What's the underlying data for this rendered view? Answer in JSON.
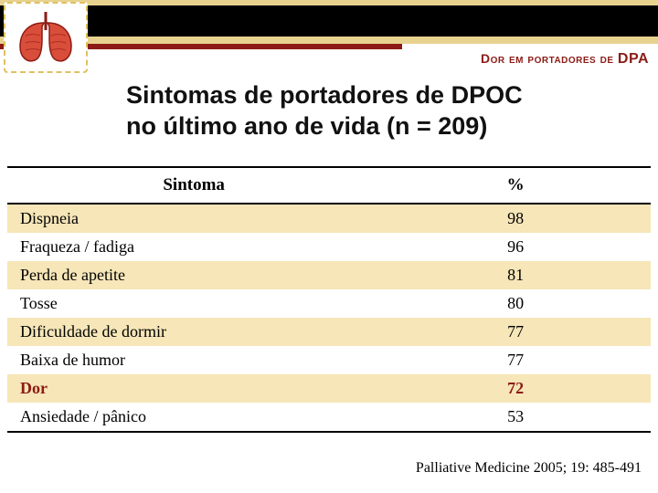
{
  "header": {
    "small_caps": "Dor em portadores de",
    "emph": "DPA",
    "color": "#8c1b15"
  },
  "title": {
    "line1": "Sintomas de portadores de DPOC",
    "line2": "no último ano de vida (n = 209)"
  },
  "table": {
    "columns": [
      "Sintoma",
      "%"
    ],
    "rows": [
      {
        "symptom": "Dispneia",
        "pct": "98",
        "band": "odd",
        "highlight": false
      },
      {
        "symptom": "Fraqueza / fadiga",
        "pct": "96",
        "band": "even",
        "highlight": false
      },
      {
        "symptom": "Perda de apetite",
        "pct": "81",
        "band": "odd",
        "highlight": false
      },
      {
        "symptom": "Tosse",
        "pct": "80",
        "band": "even",
        "highlight": false
      },
      {
        "symptom": "Dificuldade de dormir",
        "pct": "77",
        "band": "odd",
        "highlight": false
      },
      {
        "symptom": "Baixa de humor",
        "pct": "77",
        "band": "even",
        "highlight": false
      },
      {
        "symptom": "Dor",
        "pct": "72",
        "band": "odd",
        "highlight": true
      },
      {
        "symptom": "Ansiedade / pânico",
        "pct": "53",
        "band": "even",
        "highlight": false
      }
    ],
    "header_fontsize": 19,
    "cell_fontsize": 18,
    "odd_color": "#f6e6b8",
    "even_color": "#ffffff",
    "highlight_color": "#8c1b15"
  },
  "lung_icon": {
    "left_fill": "#d94e3a",
    "right_fill": "#d94e3a",
    "stroke": "#8c1b15",
    "bg": "#ffffff"
  },
  "citation": "Palliative Medicine 2005; 19: 485-491"
}
